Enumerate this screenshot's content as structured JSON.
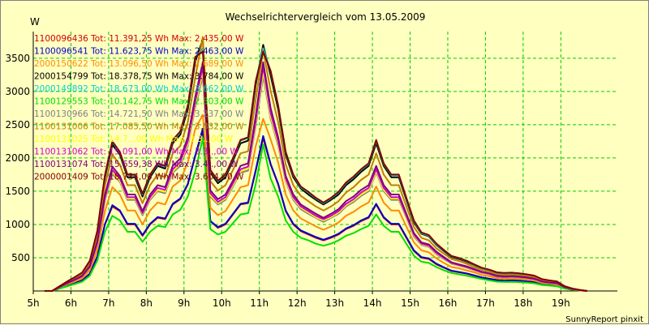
{
  "chart_data": {
    "type": "line",
    "title": "Wechselrichtervergleich vom 13.05.2009",
    "ylabel": "W",
    "xlabel": "",
    "footer": "SunnyReport pinxit",
    "ylim": [
      0,
      3900
    ],
    "y_ticks": [
      500,
      1000,
      1500,
      2000,
      2500,
      3000,
      3500
    ],
    "x_range": [
      5,
      20.5
    ],
    "x_tick_labels": [
      "5h",
      "6h",
      "7h",
      "8h",
      "9h",
      "10h",
      "11h",
      "12h",
      "13h",
      "14h",
      "15h",
      "16h",
      "17h",
      "18h",
      "19h"
    ],
    "grid": true,
    "legend_position": "top-left",
    "background": "#FFFFC0",
    "grid_color": "#00CC00",
    "series": [
      {
        "name": "1100096436 Tot: 11.391,25 Wh Max: 2.435,00 W",
        "color": "#D40000",
        "y": [
          0,
          0,
          40,
          80,
          120,
          160,
          260,
          520,
          1000,
          1270,
          1200,
          1000,
          1000,
          830,
          1000,
          1100,
          1080,
          1300,
          1380,
          1600,
          2030,
          2400,
          1050,
          950,
          1000,
          1150,
          1300,
          1320,
          1800,
          2300,
          1900,
          1600,
          1200,
          1000,
          900,
          850,
          800,
          760,
          800,
          850,
          930,
          980,
          1050,
          1100,
          1300,
          1100,
          1000,
          1000,
          800,
          600,
          500,
          480,
          400,
          350,
          300,
          280,
          260,
          230,
          200,
          180,
          160,
          150,
          155,
          150,
          140,
          130,
          100,
          90,
          80,
          40,
          20,
          10,
          0
        ]
      },
      {
        "name": "1100096541 Tot: 11.623,75 Wh Max: 2.463,00 W",
        "color": "#0000C8",
        "y": [
          0,
          0,
          40,
          80,
          120,
          160,
          260,
          520,
          1000,
          1290,
          1210,
          1010,
          1010,
          840,
          1010,
          1110,
          1090,
          1310,
          1390,
          1610,
          2040,
          2440,
          1050,
          960,
          1010,
          1160,
          1310,
          1330,
          1810,
          2330,
          1910,
          1610,
          1210,
          1010,
          910,
          860,
          810,
          770,
          810,
          860,
          940,
          990,
          1060,
          1110,
          1310,
          1110,
          1010,
          1010,
          810,
          610,
          510,
          490,
          410,
          355,
          305,
          285,
          265,
          235,
          205,
          185,
          165,
          155,
          160,
          155,
          145,
          135,
          105,
          95,
          85,
          45,
          25,
          10,
          0
        ]
      },
      {
        "name": "2000150622 Tot: 13.096,50 Wh Max: 2.689,00 W",
        "color": "#FF8C00",
        "y": [
          0,
          0,
          50,
          100,
          140,
          190,
          310,
          620,
          1200,
          1560,
          1450,
          1210,
          1210,
          1000,
          1210,
          1330,
          1300,
          1570,
          1660,
          1930,
          2440,
          2650,
          1250,
          1140,
          1200,
          1380,
          1560,
          1590,
          2170,
          2590,
          2280,
          1930,
          1450,
          1210,
          1090,
          1030,
          970,
          920,
          970,
          1030,
          1130,
          1190,
          1270,
          1330,
          1570,
          1330,
          1210,
          1210,
          970,
          730,
          610,
          580,
          490,
          420,
          360,
          340,
          310,
          280,
          240,
          220,
          190,
          180,
          185,
          180,
          170,
          155,
          120,
          110,
          95,
          50,
          25,
          10,
          0
        ]
      },
      {
        "name": "2000154799 Tot: 18.378,75 Wh Max: 3.784,00 W",
        "color": "#000000",
        "y": [
          0,
          0,
          70,
          140,
          200,
          270,
          440,
          880,
          1700,
          2200,
          2050,
          1710,
          1710,
          1420,
          1710,
          1880,
          1840,
          2220,
          2350,
          2730,
          3450,
          3780,
          1780,
          1620,
          1710,
          1960,
          2220,
          2260,
          3090,
          3700,
          3240,
          2730,
          2050,
          1710,
          1540,
          1450,
          1370,
          1300,
          1370,
          1450,
          1590,
          1680,
          1790,
          1880,
          2220,
          1880,
          1710,
          1710,
          1370,
          1030,
          860,
          820,
          690,
          600,
          510,
          480,
          440,
          390,
          340,
          310,
          270,
          260,
          265,
          255,
          240,
          220,
          170,
          150,
          135,
          70,
          35,
          15,
          0
        ]
      },
      {
        "name": "2000149892 Tot: 18.673,00 Wh Max: 3.662,00 W",
        "color": "#00D0D0",
        "y": [
          0,
          0,
          70,
          140,
          205,
          275,
          450,
          900,
          1730,
          2240,
          2080,
          1740,
          1740,
          1450,
          1740,
          1910,
          1870,
          2260,
          2390,
          2780,
          3510,
          3650,
          1810,
          1650,
          1740,
          1990,
          2260,
          2300,
          3140,
          3650,
          3300,
          2780,
          2080,
          1740,
          1560,
          1480,
          1390,
          1320,
          1390,
          1480,
          1620,
          1710,
          1820,
          1910,
          2260,
          1910,
          1740,
          1740,
          1390,
          1050,
          870,
          830,
          700,
          610,
          520,
          490,
          450,
          395,
          345,
          315,
          275,
          265,
          270,
          260,
          245,
          225,
          175,
          155,
          140,
          70,
          35,
          15,
          0
        ]
      },
      {
        "name": "1100129553 Tot: 10.142,75 Wh Max: 2.303,00 W",
        "color": "#00E000",
        "y": [
          0,
          0,
          35,
          70,
          105,
          140,
          230,
          460,
          890,
          1130,
          1060,
          890,
          890,
          740,
          890,
          980,
          960,
          1150,
          1220,
          1420,
          1800,
          2300,
          930,
          850,
          890,
          1020,
          1150,
          1170,
          1600,
          2200,
          1690,
          1420,
          1060,
          890,
          800,
          760,
          710,
          680,
          710,
          760,
          830,
          870,
          930,
          980,
          1150,
          980,
          890,
          890,
          710,
          530,
          440,
          420,
          360,
          310,
          270,
          250,
          230,
          205,
          180,
          160,
          140,
          135,
          138,
          133,
          125,
          115,
          90,
          80,
          70,
          35,
          18,
          8,
          0
        ]
      },
      {
        "name": "1100130966 Tot: 14.721,50 Wh Max: 3.237,00 W",
        "color": "#808080",
        "y": [
          0,
          0,
          55,
          110,
          160,
          215,
          350,
          700,
          1360,
          1760,
          1640,
          1370,
          1370,
          1140,
          1370,
          1500,
          1470,
          1780,
          1880,
          2180,
          2760,
          3230,
          1420,
          1300,
          1370,
          1570,
          1780,
          1810,
          2470,
          3230,
          2590,
          2180,
          1640,
          1370,
          1230,
          1160,
          1100,
          1040,
          1100,
          1160,
          1270,
          1340,
          1430,
          1500,
          1780,
          1500,
          1370,
          1370,
          1100,
          820,
          690,
          660,
          550,
          480,
          410,
          380,
          350,
          310,
          270,
          250,
          215,
          205,
          210,
          205,
          190,
          175,
          135,
          120,
          110,
          55,
          28,
          12,
          0
        ]
      },
      {
        "name": "1100131006 Tot: 17.085,50 Wh Max: 3.832,00 W",
        "color": "#C08000",
        "y": [
          0,
          0,
          65,
          130,
          190,
          250,
          410,
          820,
          1580,
          2050,
          1900,
          1590,
          1590,
          1320,
          1590,
          1750,
          1710,
          2070,
          2180,
          2540,
          3210,
          3820,
          1650,
          1510,
          1590,
          1820,
          2070,
          2100,
          2870,
          3620,
          3010,
          2540,
          1900,
          1590,
          1430,
          1350,
          1270,
          1210,
          1270,
          1350,
          1480,
          1560,
          1670,
          1750,
          2070,
          1750,
          1590,
          1590,
          1270,
          960,
          800,
          760,
          640,
          560,
          480,
          450,
          410,
          360,
          320,
          290,
          250,
          240,
          245,
          235,
          225,
          205,
          160,
          140,
          125,
          65,
          33,
          14,
          0
        ]
      },
      {
        "name": "1100131025 Tot: 14.7..,00 Wh Max: 3.3..,00 W",
        "color": "#FFFF00",
        "y": [
          0,
          0,
          56,
          112,
          162,
          218,
          355,
          710,
          1380,
          1790,
          1660,
          1390,
          1390,
          1160,
          1390,
          1520,
          1490,
          1800,
          1910,
          2210,
          2800,
          3300,
          1440,
          1320,
          1390,
          1590,
          1800,
          1840,
          2510,
          3300,
          2630,
          2210,
          1660,
          1390,
          1250,
          1180,
          1110,
          1060,
          1110,
          1180,
          1290,
          1360,
          1450,
          1520,
          1800,
          1520,
          1390,
          1390,
          1110,
          840,
          700,
          670,
          560,
          490,
          415,
          385,
          355,
          315,
          275,
          255,
          220,
          210,
          215,
          208,
          195,
          178,
          138,
          122,
          112,
          56,
          28,
          12,
          0
        ]
      },
      {
        "name": "1100131062 Tot: 15.091,00 Wh Max: 3.3..,00 W",
        "color": "#D000D0",
        "y": [
          0,
          0,
          58,
          115,
          165,
          222,
          362,
          725,
          1400,
          1820,
          1690,
          1410,
          1410,
          1170,
          1410,
          1550,
          1520,
          1830,
          1940,
          2250,
          2850,
          3380,
          1470,
          1340,
          1410,
          1620,
          1830,
          1870,
          2550,
          3380,
          2680,
          2250,
          1690,
          1410,
          1270,
          1200,
          1130,
          1080,
          1130,
          1200,
          1310,
          1380,
          1480,
          1550,
          1830,
          1550,
          1410,
          1410,
          1130,
          850,
          710,
          680,
          570,
          495,
          420,
          390,
          360,
          320,
          280,
          258,
          222,
          212,
          218,
          210,
          198,
          180,
          140,
          124,
          114,
          57,
          29,
          12,
          0
        ]
      },
      {
        "name": "1100131074 Tot: 15.659,38 Wh Max: 3.4..,00 W",
        "color": "#800080",
        "y": [
          0,
          0,
          60,
          118,
          170,
          228,
          372,
          745,
          1440,
          1870,
          1730,
          1450,
          1450,
          1200,
          1450,
          1590,
          1560,
          1880,
          1990,
          2310,
          2920,
          3440,
          1510,
          1380,
          1450,
          1660,
          1880,
          1920,
          2620,
          3440,
          2750,
          2310,
          1730,
          1450,
          1300,
          1230,
          1160,
          1100,
          1160,
          1230,
          1350,
          1420,
          1520,
          1590,
          1880,
          1590,
          1450,
          1450,
          1160,
          870,
          730,
          700,
          590,
          510,
          430,
          400,
          370,
          330,
          290,
          265,
          228,
          218,
          222,
          215,
          203,
          185,
          144,
          127,
          117,
          59,
          30,
          13,
          0
        ]
      },
      {
        "name": "2000001409 Tot: 18.734,00 Wh Max: 3.604,00 W",
        "color": "#800000",
        "y": [
          0,
          0,
          72,
          142,
          207,
          278,
          455,
          905,
          1740,
          2250,
          2090,
          1750,
          1750,
          1460,
          1750,
          1920,
          1880,
          2270,
          2400,
          2790,
          3520,
          3600,
          1820,
          1660,
          1750,
          2000,
          2270,
          2310,
          3150,
          3600,
          3310,
          2790,
          2090,
          1750,
          1570,
          1490,
          1400,
          1330,
          1400,
          1490,
          1630,
          1720,
          1830,
          1920,
          2270,
          1920,
          1750,
          1750,
          1400,
          1060,
          880,
          840,
          710,
          615,
          525,
          495,
          455,
          400,
          350,
          320,
          280,
          270,
          275,
          265,
          250,
          230,
          178,
          158,
          142,
          72,
          36,
          16,
          0
        ]
      }
    ]
  }
}
